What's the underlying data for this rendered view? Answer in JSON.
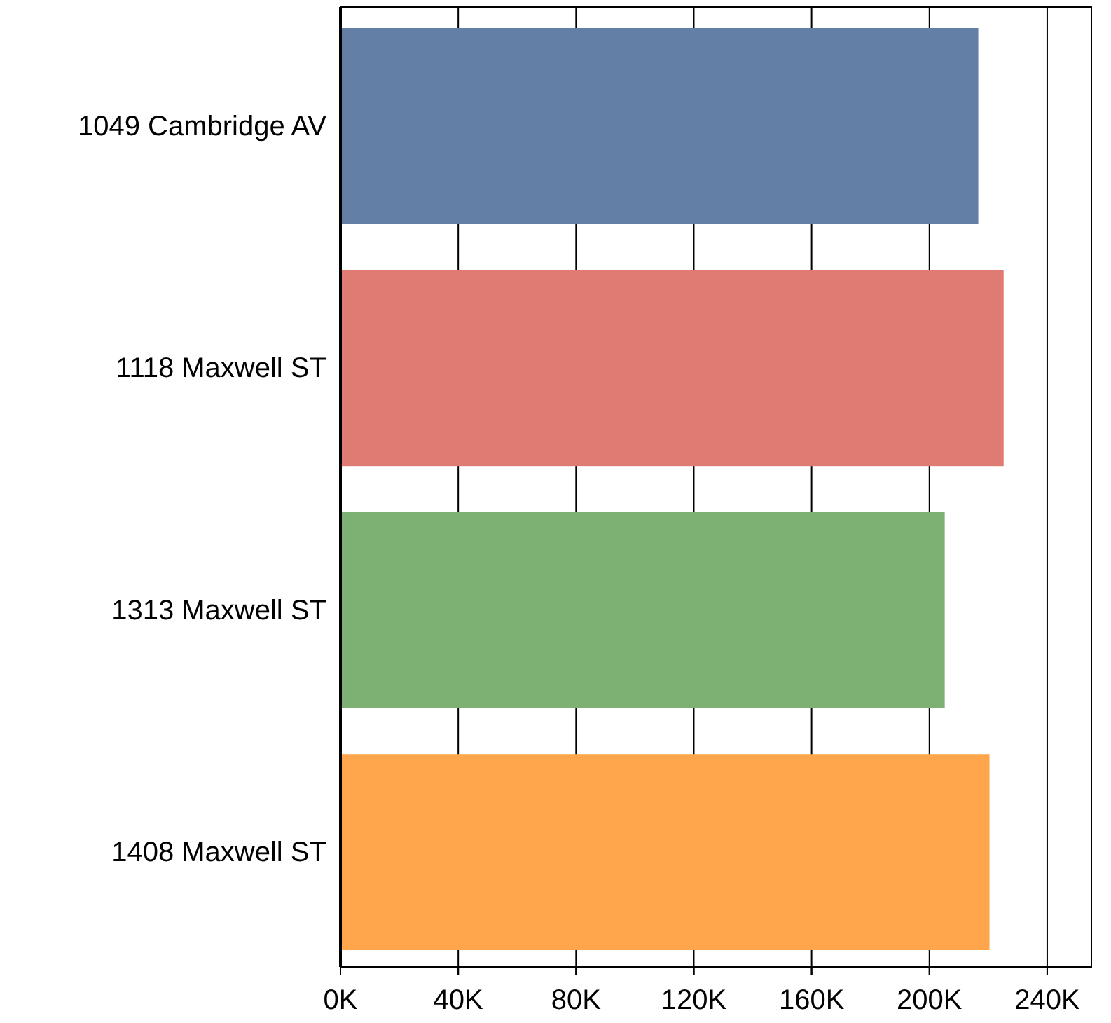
{
  "chart_data": {
    "type": "bar",
    "orientation": "horizontal",
    "categories": [
      "1049 Cambridge AV",
      "1118 Maxwell ST",
      "1313 Maxwell ST",
      "1408 Maxwell ST"
    ],
    "values": [
      216.6,
      225.2,
      205.2,
      220.4
    ],
    "colors": [
      "#647fa6",
      "#e07b74",
      "#7db174",
      "#ffa64d"
    ],
    "xlim": [
      0,
      255
    ],
    "xticks": [
      {
        "value": 0,
        "label": "0K"
      },
      {
        "value": 40,
        "label": "40K"
      },
      {
        "value": 80,
        "label": "80K"
      },
      {
        "value": 120,
        "label": "120K"
      },
      {
        "value": 160,
        "label": "160K"
      },
      {
        "value": 200,
        "label": "200K"
      },
      {
        "value": 240,
        "label": "240K"
      }
    ],
    "grid": "x"
  }
}
